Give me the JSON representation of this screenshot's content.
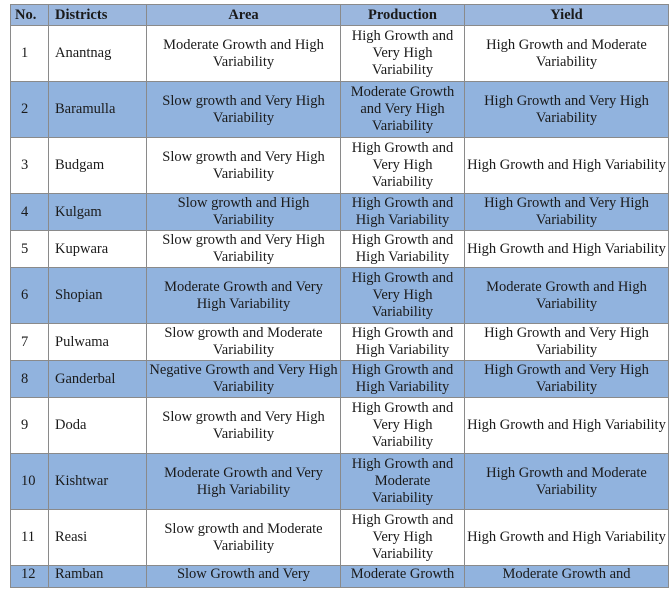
{
  "table": {
    "headers": {
      "no": "No.",
      "district": "Districts",
      "area": "Area",
      "production": "Production",
      "yield": "Yield"
    },
    "rows": [
      {
        "no": "1",
        "district": "Anantnag",
        "area": "Moderate Growth and High Variability",
        "production": "High Growth and Very High Variability",
        "yield": "High Growth and Moderate Variability"
      },
      {
        "no": "2",
        "district": "Baramulla",
        "area": "Slow growth and Very High Variability",
        "production": "Moderate Growth and Very High Variability",
        "yield": "High Growth and Very High Variability"
      },
      {
        "no": "3",
        "district": "Budgam",
        "area": "Slow growth and Very High Variability",
        "production": "High Growth and Very High Variability",
        "yield": "High Growth and High Variability"
      },
      {
        "no": "4",
        "district": "Kulgam",
        "area": "Slow growth and High Variability",
        "production": "High Growth and High Variability",
        "yield": "High Growth and Very High Variability"
      },
      {
        "no": "5",
        "district": "Kupwara",
        "area": "Slow growth and Very High Variability",
        "production": "High Growth and High Variability",
        "yield": "High Growth and High Variability"
      },
      {
        "no": "6",
        "district": "Shopian",
        "area": "Moderate Growth and Very High Variability",
        "production": "High Growth and Very High Variability",
        "yield": "Moderate Growth and High Variability"
      },
      {
        "no": "7",
        "district": "Pulwama",
        "area": "Slow growth and Moderate Variability",
        "production": "High Growth and High Variability",
        "yield": "High Growth and Very High Variability"
      },
      {
        "no": "8",
        "district": "Ganderbal",
        "area": "Negative Growth and Very High Variability",
        "production": "High Growth and High Variability",
        "yield": "High Growth and Very High Variability"
      },
      {
        "no": "9",
        "district": "Doda",
        "area": "Slow growth and Very High Variability",
        "production": "High Growth and Very High Variability",
        "yield": "High Growth and High Variability"
      },
      {
        "no": "10",
        "district": "Kishtwar",
        "area": "Moderate Growth and Very High Variability",
        "production": "High Growth and Moderate Variability",
        "yield": "High Growth and Moderate Variability"
      },
      {
        "no": "11",
        "district": "Reasi",
        "area": "Slow growth and Moderate Variability",
        "production": "High Growth and Very High Variability",
        "yield": "High Growth and High Variability"
      },
      {
        "no": "12",
        "district": "Ramban",
        "area": "Slow Growth and Very",
        "production": "Moderate Growth",
        "yield": "Moderate Growth and"
      }
    ]
  }
}
